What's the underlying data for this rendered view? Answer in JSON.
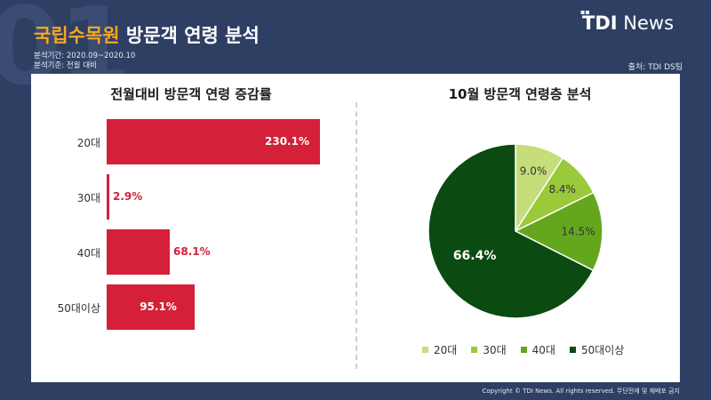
{
  "header": {
    "bg_number": "01",
    "title_highlight": "국립수목원",
    "title_rest": " 방문객 연령 분석",
    "period": "분석기간: 2020.09~2020.10",
    "basis": "분석기준: 전월 대비",
    "source": "출처: TDI DS팀",
    "logo_bold": "TDI",
    "logo_light": "News",
    "copyright": "Copyright © TDI News. All rights reserved. 무단전재 및 재배포 금지"
  },
  "colors": {
    "background": "#2e3f63",
    "title_accent": "#f5a623",
    "bar": "#d42038",
    "pie": [
      "#c6dd7c",
      "#9ac93a",
      "#64a71c",
      "#0b4a11"
    ]
  },
  "chart_data": [
    {
      "type": "bar",
      "orientation": "horizontal",
      "title": "전월대비 방문객 연령 증감률",
      "categories": [
        "20대",
        "30대",
        "40대",
        "50대이상"
      ],
      "values": [
        230.1,
        2.9,
        68.1,
        95.1
      ],
      "labels": [
        "230.1%",
        "2.9%",
        "68.1%",
        "95.1%"
      ],
      "unit": "%",
      "grid": false
    },
    {
      "type": "pie",
      "title": "10월 방문객 연령층 분석",
      "categories": [
        "20대",
        "30대",
        "40대",
        "50대이상"
      ],
      "values": [
        9.0,
        8.4,
        14.5,
        66.4
      ],
      "labels": [
        "9.0%",
        "8.4%",
        "14.5%",
        "66.4%"
      ],
      "legend_position": "bottom"
    }
  ]
}
